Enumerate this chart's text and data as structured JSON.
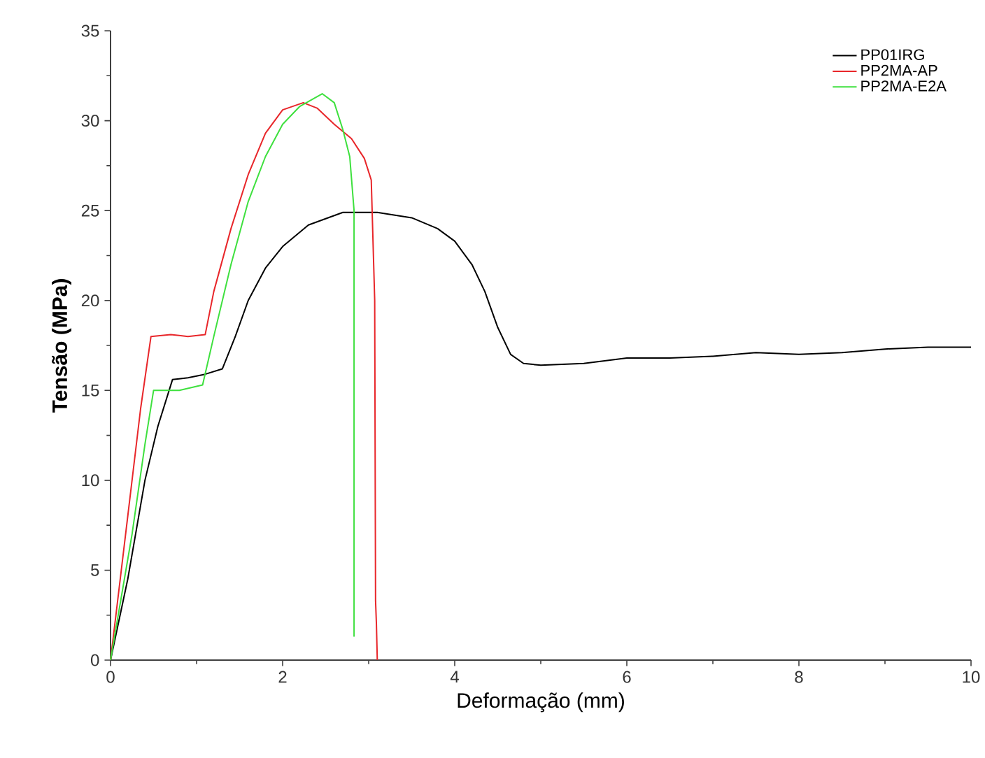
{
  "chart_data": {
    "type": "line",
    "xlabel": "Deformação (mm)",
    "ylabel": "Tensão (MPa)",
    "xlim": [
      0,
      10
    ],
    "ylim": [
      0,
      35
    ],
    "xticks": [
      0,
      2,
      4,
      6,
      8,
      10
    ],
    "yticks": [
      0,
      5,
      10,
      15,
      20,
      25,
      30,
      35
    ],
    "legend": "top right",
    "grid": false,
    "marker": "none",
    "line_style": "solid",
    "series": [
      {
        "name": "PP01IRG",
        "color": "#000000",
        "x": [
          0,
          0.2,
          0.4,
          0.55,
          0.72,
          0.9,
          1.1,
          1.3,
          1.45,
          1.6,
          1.8,
          2.0,
          2.3,
          2.7,
          3.1,
          3.5,
          3.8,
          4.0,
          4.2,
          4.35,
          4.5,
          4.65,
          4.8,
          5.0,
          5.5,
          6.0,
          6.5,
          7.0,
          7.5,
          8.0,
          8.5,
          9.0,
          9.5,
          10.0
        ],
        "values": [
          0,
          4.5,
          10,
          13,
          15.6,
          15.7,
          15.9,
          16.2,
          18,
          20,
          21.8,
          23,
          24.2,
          24.9,
          24.9,
          24.6,
          24,
          23.3,
          22,
          20.5,
          18.5,
          17,
          16.5,
          16.4,
          16.5,
          16.8,
          16.8,
          16.9,
          17.1,
          17,
          17.1,
          17.3,
          17.4,
          17.4
        ]
      },
      {
        "name": "PP2MA-AP",
        "color": "#e8262a",
        "x": [
          0,
          0.2,
          0.35,
          0.47,
          0.7,
          0.9,
          1.1,
          1.2,
          1.4,
          1.6,
          1.8,
          2.0,
          2.24,
          2.4,
          2.6,
          2.8,
          2.95,
          3.03,
          3.07,
          3.08,
          3.09,
          3.1
        ],
        "values": [
          0,
          8,
          14,
          18,
          18.1,
          18,
          18.1,
          20.5,
          24,
          27,
          29.3,
          30.6,
          31,
          30.7,
          29.8,
          29,
          27.9,
          26.7,
          20,
          3.3,
          2,
          0
        ]
      },
      {
        "name": "PP2MA-E2A",
        "color": "#3ee03e",
        "x": [
          0,
          0.25,
          0.4,
          0.5,
          0.8,
          1.07,
          1.2,
          1.4,
          1.6,
          1.8,
          2.0,
          2.2,
          2.46,
          2.6,
          2.7,
          2.78,
          2.83,
          2.83
        ],
        "values": [
          0,
          7,
          12,
          15,
          15,
          15.3,
          18,
          22,
          25.5,
          28,
          29.8,
          30.8,
          31.5,
          31,
          29.5,
          28,
          25,
          1.3
        ]
      }
    ]
  }
}
